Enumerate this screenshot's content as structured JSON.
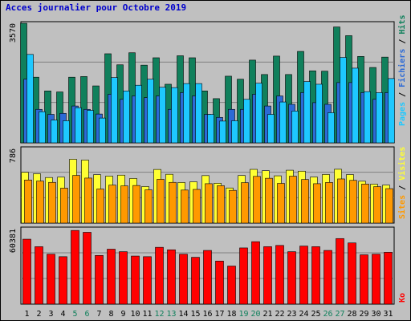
{
  "title": "Acces journalier pour Octobre 2019",
  "colors": {
    "background": "#c0c0c0",
    "gridline": "#808080",
    "hits": "#10805c",
    "files": "#2c6ad6",
    "pages": "#1ec8ff",
    "visits": "#ffff33",
    "sites": "#ff9900",
    "kb": "#ff0000",
    "weekend_label": "#10805c",
    "weekday_label": "#000000"
  },
  "chart_data": [
    {
      "type": "bar",
      "title": "Acces journalier pour Octobre 2019",
      "x": [
        "1",
        "2",
        "3",
        "4",
        "5",
        "6",
        "7",
        "8",
        "9",
        "10",
        "11",
        "12",
        "13",
        "14",
        "15",
        "16",
        "17",
        "18",
        "19",
        "20",
        "21",
        "22",
        "23",
        "24",
        "25",
        "26",
        "27",
        "28",
        "29",
        "30",
        "31"
      ],
      "weekend_days": [
        "5",
        "6",
        "12",
        "13",
        "19",
        "20",
        "26",
        "27"
      ],
      "ymax_label": "3570",
      "ylim": [
        0,
        3570
      ],
      "legend_placement": "right",
      "series": [
        {
          "name": "Hits",
          "values": [
            3570,
            1960,
            1550,
            1520,
            1960,
            1980,
            1700,
            2660,
            2330,
            2690,
            2320,
            2540,
            1750,
            2600,
            2540,
            1550,
            1320,
            1990,
            1900,
            2470,
            2040,
            2590,
            2040,
            2730,
            2150,
            2140,
            3460,
            3200,
            2580,
            2250,
            2560
          ]
        },
        {
          "name": "Fichiers",
          "values": [
            1900,
            1000,
            850,
            880,
            1100,
            1000,
            860,
            1450,
            1300,
            1400,
            1350,
            1400,
            1000,
            1500,
            1400,
            850,
            760,
            1000,
            1000,
            1450,
            1100,
            1400,
            1150,
            1500,
            1200,
            1150,
            1800,
            1800,
            1500,
            1300,
            1500
          ]
        },
        {
          "name": "Pages",
          "values": [
            2640,
            930,
            680,
            660,
            1050,
            970,
            740,
            1950,
            1550,
            1720,
            1900,
            1660,
            1650,
            1770,
            1770,
            850,
            650,
            660,
            1300,
            1780,
            850,
            1220,
            950,
            1830,
            1750,
            900,
            2550,
            2230,
            1530,
            1500,
            1920
          ]
        }
      ]
    },
    {
      "type": "bar",
      "ymax_label": "786",
      "ylim": [
        0,
        786
      ],
      "legend_placement": "right",
      "series": [
        {
          "name": "Visites",
          "values": [
            535,
            520,
            480,
            484,
            672,
            664,
            510,
            495,
            505,
            470,
            385,
            565,
            514,
            428,
            435,
            500,
            420,
            370,
            501,
            566,
            552,
            498,
            557,
            547,
            485,
            512,
            567,
            511,
            441,
            410,
            400
          ]
        },
        {
          "name": "Sites",
          "values": [
            454,
            443,
            429,
            368,
            502,
            474,
            359,
            400,
            392,
            396,
            350,
            461,
            429,
            348,
            355,
            415,
            394,
            345,
            426,
            492,
            472,
            418,
            494,
            459,
            415,
            428,
            465,
            450,
            411,
            384,
            363
          ]
        }
      ]
    },
    {
      "type": "bar",
      "ymax_label": "60381",
      "ylim": [
        0,
        60381
      ],
      "legend_placement": "right",
      "series": [
        {
          "name": "Ko",
          "values": [
            52000,
            46000,
            40000,
            38000,
            59000,
            57500,
            39000,
            44000,
            42000,
            38500,
            38000,
            45500,
            43500,
            40000,
            37500,
            43000,
            34500,
            30500,
            45000,
            50000,
            46000,
            47000,
            42000,
            46500,
            46000,
            43000,
            52500,
            49000,
            39500,
            40000,
            41500
          ]
        }
      ]
    }
  ]
}
